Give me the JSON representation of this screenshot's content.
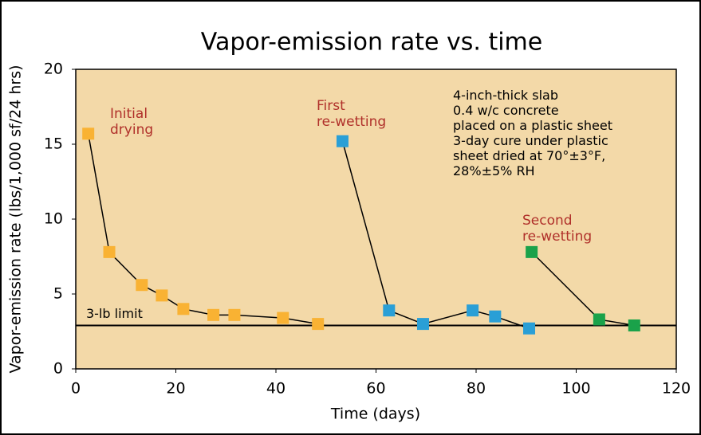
{
  "chart_data": {
    "type": "line",
    "title": "Vapor-emission rate vs. time",
    "x_label": "Time (days)",
    "y_label": "Vapor-emission rate (lbs/1,000 sf/24 hrs)",
    "xlim": [
      0,
      120
    ],
    "xticks": [
      0,
      20,
      40,
      60,
      80,
      100,
      120
    ],
    "ylim": [
      0,
      20
    ],
    "yticks": [
      0,
      5,
      10,
      15,
      20
    ],
    "grid": false,
    "background": "#f3d9a8",
    "series": [
      {
        "name": "Initial drying",
        "label_lines": [
          "Initial",
          "drying"
        ],
        "color": "#f9b233",
        "x": [
          2.5,
          6.7,
          13.2,
          17.2,
          21.5,
          27.5,
          31.7,
          41.4,
          48.4
        ],
        "values": [
          15.7,
          7.8,
          5.6,
          4.9,
          4.0,
          3.6,
          3.6,
          3.4,
          3.0
        ]
      },
      {
        "name": "First re-wetting",
        "label_lines": [
          "First",
          "re-wetting"
        ],
        "color": "#2a9fd6",
        "x": [
          53.3,
          62.6,
          69.4,
          79.3,
          83.8,
          90.6
        ],
        "values": [
          15.2,
          3.9,
          3.0,
          3.9,
          3.5,
          2.7
        ]
      },
      {
        "name": "Second re-wetting",
        "label_lines": [
          "Second",
          "re-wetting"
        ],
        "color": "#1aa24a",
        "x": [
          91.1,
          104.6,
          111.6
        ],
        "values": [
          7.8,
          3.3,
          2.9
        ]
      }
    ],
    "limit": {
      "label": "3-lb limit",
      "value": 2.9
    },
    "note_lines": [
      "4-inch-thick slab",
      "0.4 w/c concrete",
      "placed on a plastic sheet",
      "3-day cure under plastic",
      "sheet dried at 70°±3°F,",
      "28%±5% RH"
    ]
  }
}
